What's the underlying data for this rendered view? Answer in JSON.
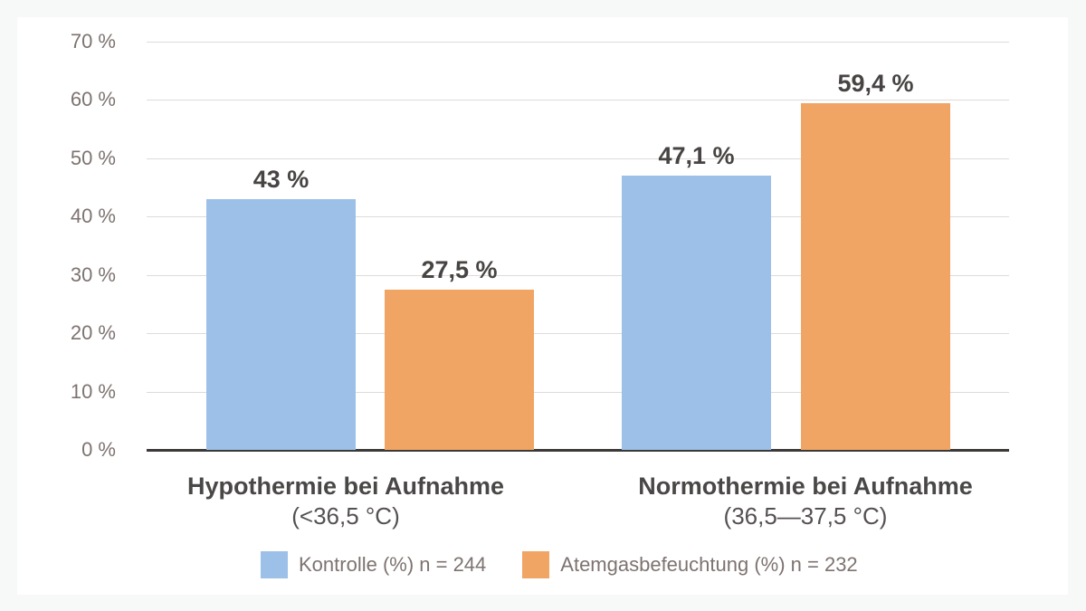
{
  "colors": {
    "page_bg": "#f7f8f8",
    "card_bg": "#ffffff",
    "grid_line": "#dedcda",
    "axis_line": "#3c3a39",
    "tick_text": "#7d7370",
    "label_text": "#4a4847",
    "series_blue": "#9cc0e7",
    "series_orange": "#f1a565"
  },
  "chart_data": {
    "type": "bar",
    "title": "",
    "categories": [
      {
        "id": "hypothermie",
        "label": "Hypothermie bei Aufnahme",
        "sublabel": "(<36,5 °C)"
      },
      {
        "id": "normothermie",
        "label": "Normothermie bei Aufnahme",
        "sublabel": "(36,5—37,5 °C)"
      }
    ],
    "series": [
      {
        "id": "kontrolle",
        "name": "Kontrolle (%) n = 244",
        "color": "#9cc0e7",
        "values": [
          43,
          47.1
        ],
        "value_labels": [
          "43 %",
          "47,1 %"
        ]
      },
      {
        "id": "atemgasbefeuchtung",
        "name": "Atemgasbefeuchtung (%) n = 232",
        "color": "#f1a565",
        "values": [
          27.5,
          59.4
        ],
        "value_labels": [
          "27,5 %",
          "59,4 %"
        ]
      }
    ],
    "y_axis": {
      "min": 0,
      "max": 70,
      "step": 10,
      "unit": "%",
      "tick_labels": [
        "0 %",
        "10 %",
        "20 %",
        "30 %",
        "40 %",
        "50 %",
        "60 %",
        "70 %"
      ]
    },
    "grid": true,
    "legend_position": "bottom"
  }
}
